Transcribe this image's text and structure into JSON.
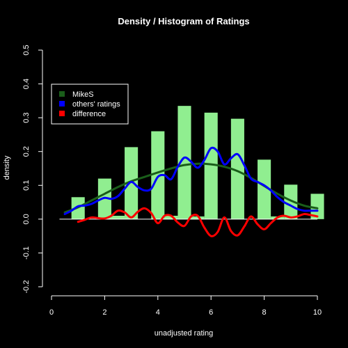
{
  "chart_data": {
    "type": "bar",
    "title": "Density / Histogram of Ratings",
    "xlabel": "unadjusted rating",
    "ylabel": "density",
    "xlim": [
      0,
      10
    ],
    "ylim": [
      -0.2,
      0.5
    ],
    "x_ticks": [
      0,
      2,
      4,
      6,
      8,
      10
    ],
    "y_ticks": [
      -0.2,
      -0.1,
      0.0,
      0.1,
      0.2,
      0.3,
      0.4,
      0.5
    ],
    "x_tick_labels": [
      "0",
      "2",
      "4",
      "6",
      "8",
      "10"
    ],
    "y_tick_labels": [
      "-0.2",
      "-0.1",
      "0.0",
      "0.1",
      "0.2",
      "0.3",
      "0.4",
      "0.5"
    ],
    "grid": false,
    "histogram": {
      "color": "#90ee90",
      "bars": [
        {
          "x0": 0.75,
          "x1": 1.25,
          "density": 0.065
        },
        {
          "x0": 1.75,
          "x1": 2.25,
          "density": 0.12
        },
        {
          "x0": 2.25,
          "x1": 2.75,
          "density": 0.01
        },
        {
          "x0": 2.75,
          "x1": 3.25,
          "density": 0.213
        },
        {
          "x0": 3.75,
          "x1": 4.25,
          "density": 0.26
        },
        {
          "x0": 4.25,
          "x1": 4.75,
          "density": 0.01
        },
        {
          "x0": 4.75,
          "x1": 5.25,
          "density": 0.335
        },
        {
          "x0": 5.25,
          "x1": 5.75,
          "density": 0.008
        },
        {
          "x0": 5.75,
          "x1": 6.25,
          "density": 0.315
        },
        {
          "x0": 6.75,
          "x1": 7.25,
          "density": 0.297
        },
        {
          "x0": 7.75,
          "x1": 8.25,
          "density": 0.176
        },
        {
          "x0": 8.25,
          "x1": 8.75,
          "density": 0.008
        },
        {
          "x0": 8.75,
          "x1": 9.25,
          "density": 0.102
        },
        {
          "x0": 9.75,
          "x1": 10.25,
          "density": 0.075
        }
      ],
      "baseline": {
        "x0": 0.3,
        "x1": 10.0,
        "y": 0.0
      }
    },
    "legend": {
      "placement": "top-left",
      "entries": [
        "MikeS",
        "others' ratings",
        "difference"
      ]
    },
    "series": [
      {
        "name": "MikeS",
        "color": "#1a5e1a",
        "x": [
          0.5,
          1.0,
          1.5,
          2.0,
          2.5,
          3.0,
          3.5,
          4.0,
          4.5,
          5.0,
          5.5,
          6.0,
          6.5,
          7.0,
          7.5,
          8.0,
          8.5,
          9.0,
          9.5,
          10.0
        ],
        "y": [
          0.02,
          0.035,
          0.055,
          0.075,
          0.095,
          0.112,
          0.125,
          0.138,
          0.15,
          0.16,
          0.164,
          0.162,
          0.155,
          0.142,
          0.122,
          0.098,
          0.075,
          0.055,
          0.04,
          0.032
        ]
      },
      {
        "name": "others' ratings",
        "color": "#0000ff",
        "x": [
          0.5,
          0.75,
          1.0,
          1.25,
          1.5,
          1.75,
          2.0,
          2.25,
          2.5,
          2.75,
          3.0,
          3.25,
          3.5,
          3.75,
          4.0,
          4.25,
          4.5,
          4.75,
          5.0,
          5.25,
          5.5,
          5.75,
          6.0,
          6.25,
          6.5,
          6.75,
          7.0,
          7.25,
          7.5,
          7.75,
          8.0,
          8.25,
          8.5,
          8.75,
          9.0,
          9.25,
          9.5,
          9.75,
          10.0
        ],
        "y": [
          0.015,
          0.025,
          0.038,
          0.04,
          0.045,
          0.055,
          0.063,
          0.06,
          0.068,
          0.09,
          0.11,
          0.095,
          0.085,
          0.09,
          0.125,
          0.13,
          0.118,
          0.155,
          0.182,
          0.17,
          0.152,
          0.175,
          0.21,
          0.2,
          0.162,
          0.18,
          0.192,
          0.16,
          0.12,
          0.11,
          0.1,
          0.085,
          0.065,
          0.05,
          0.04,
          0.03,
          0.025,
          0.025,
          0.025
        ]
      },
      {
        "name": "difference",
        "color": "#ff0000",
        "x": [
          1.0,
          1.25,
          1.5,
          1.75,
          2.0,
          2.25,
          2.5,
          2.75,
          3.0,
          3.25,
          3.5,
          3.75,
          4.0,
          4.25,
          4.5,
          4.75,
          5.0,
          5.25,
          5.5,
          5.75,
          6.0,
          6.25,
          6.5,
          6.75,
          7.0,
          7.25,
          7.5,
          7.75,
          8.0,
          8.25,
          8.5,
          8.75,
          9.0,
          9.25,
          9.5,
          9.75,
          10.0
        ],
        "y": [
          -0.008,
          -0.002,
          0.005,
          0.003,
          0.002,
          0.01,
          0.025,
          0.02,
          0.005,
          0.022,
          0.032,
          0.018,
          -0.012,
          0.01,
          0.01,
          -0.01,
          -0.02,
          0.008,
          0.01,
          -0.025,
          -0.05,
          -0.038,
          0.005,
          -0.035,
          -0.048,
          -0.022,
          0.008,
          -0.015,
          -0.03,
          -0.012,
          0.005,
          0.01,
          0.005,
          0.008,
          0.015,
          0.012,
          0.008
        ]
      }
    ]
  }
}
